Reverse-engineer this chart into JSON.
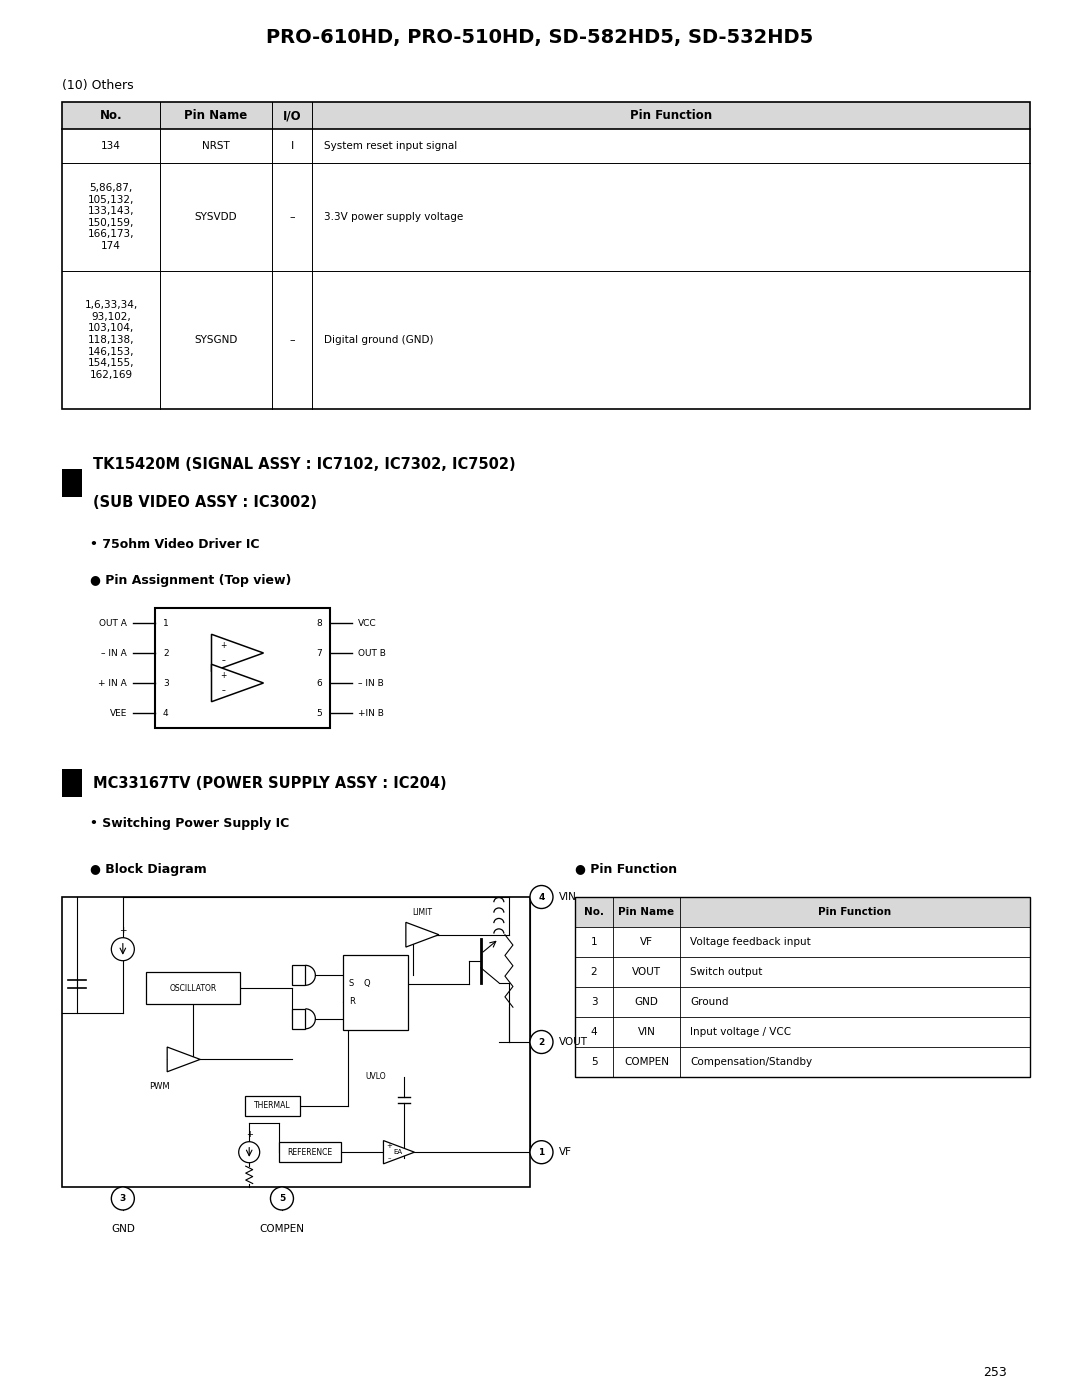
{
  "title": "PRO-610HD, PRO-510HD, SD-582HD5, SD-532HD5",
  "page_number": "253",
  "background_color": "#ffffff",
  "table1_header": [
    "No.",
    "Pin Name",
    "I/O",
    "Pin Function"
  ],
  "table1_rows": [
    [
      "134",
      "NRST",
      "I",
      "System reset input signal"
    ],
    [
      "5,86,87,\n105,132,\n133,143,\n150,159,\n166,173,\n174",
      "SYSVDD",
      "–",
      "3.3V power supply voltage"
    ],
    [
      "1,6,33,34,\n93,102,\n103,104,\n118,138,\n146,153,\n154,155,\n162,169",
      "SYSGND",
      "–",
      "Digital ground (GND)"
    ]
  ],
  "section_others": "(10) Others",
  "section_tk_line1": "TK15420M (SIGNAL ASSY : IC7102, IC7302, IC7502)",
  "section_tk_line2": "(SUB VIDEO ASSY : IC3002)",
  "section_tk_sub": "• 75ohm Video Driver IC",
  "section_tk_pin": "● Pin Assignment (Top view)",
  "pin_left_labels": [
    "OUT A",
    "– IN A",
    "+ IN A",
    "VEE"
  ],
  "pin_right_labels": [
    "VCC",
    "OUT B",
    "– IN B",
    "+IN B"
  ],
  "pin_left_nums": [
    "1",
    "2",
    "3",
    "4"
  ],
  "pin_right_nums": [
    "8",
    "7",
    "6",
    "5"
  ],
  "section_mc_line1": "MC33167TV (POWER SUPPLY ASSY : IC204)",
  "section_mc_sub": "• Switching Power Supply IC",
  "section_block": "● Block Diagram",
  "section_pinfunc": "● Pin Function",
  "pin_func_header": [
    "No.",
    "Pin Name",
    "Pin Function"
  ],
  "pin_func_rows": [
    [
      "1",
      "VF",
      "Voltage feedback input"
    ],
    [
      "2",
      "VOUT",
      "Switch output"
    ],
    [
      "3",
      "GND",
      "Ground"
    ],
    [
      "4",
      "VIN",
      "Input voltage / VCC"
    ],
    [
      "5",
      "COMPEN",
      "Compensation/Standby"
    ]
  ]
}
